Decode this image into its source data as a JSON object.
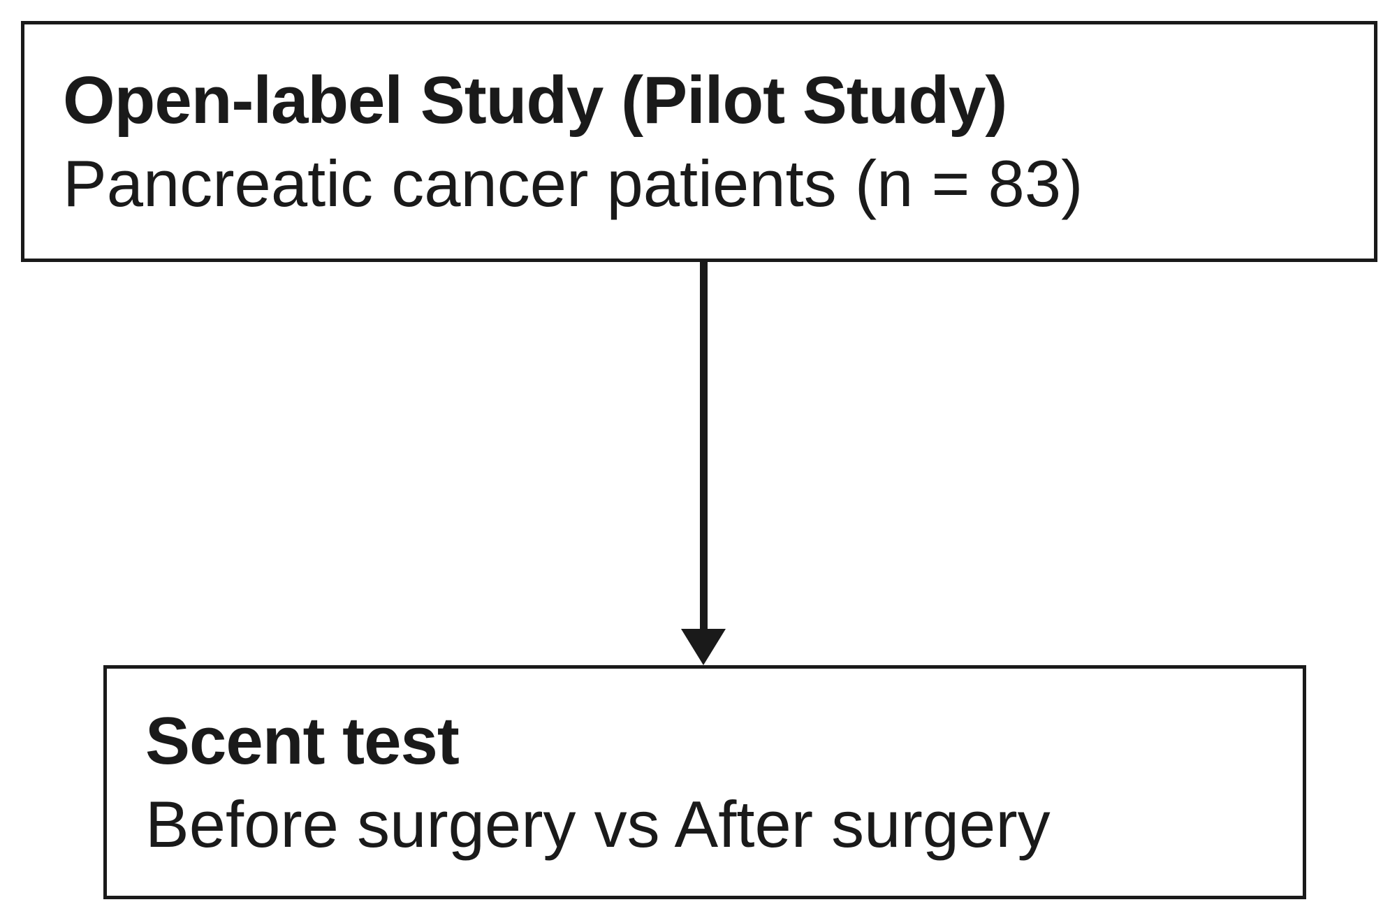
{
  "diagram": {
    "type": "study-flowchart",
    "colors": {
      "background": "#ffffff",
      "line": "#1a1a1a",
      "text": "#1a1a1a"
    },
    "nodes": {
      "top": {
        "title": "Open-label Study (Pilot Study)",
        "subtitle": "Pancreatic cancer patients (n = 83)"
      },
      "bottom": {
        "title": "Scent test",
        "subtitle": "Before surgery vs After surgery"
      }
    },
    "connectors": [
      {
        "from": "top",
        "to": "bottom",
        "style": "arrow-down"
      }
    ]
  }
}
